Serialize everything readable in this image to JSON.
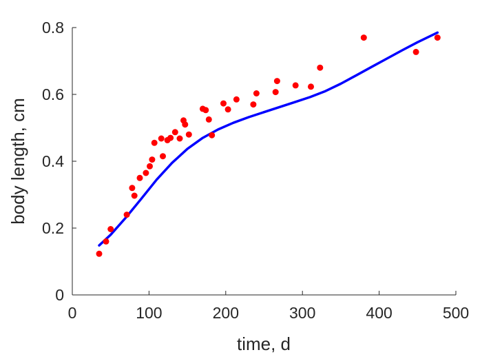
{
  "chart_data": {
    "type": "scatter",
    "title": "",
    "xlabel": "time, d",
    "ylabel": "body length, cm",
    "xlim": [
      0,
      500
    ],
    "ylim": [
      0,
      0.8
    ],
    "xticks": [
      0,
      100,
      200,
      300,
      400,
      500
    ],
    "yticks": [
      0,
      0.2,
      0.4,
      0.6,
      0.8
    ],
    "xtick_labels": [
      "0",
      "100",
      "200",
      "300",
      "400",
      "500"
    ],
    "ytick_labels": [
      "0",
      "0.2",
      "0.4",
      "0.6",
      "0.8"
    ],
    "grid": false,
    "legend": "none",
    "series": [
      {
        "kind": "scatter",
        "color": "#ff0000",
        "x": [
          35,
          44,
          50,
          71,
          78,
          81,
          88,
          96,
          101,
          104,
          107,
          116,
          118,
          124,
          128,
          134,
          140,
          145,
          147,
          152,
          170,
          174,
          178,
          182,
          197,
          203,
          214,
          236,
          240,
          265,
          267,
          291,
          311,
          323,
          380,
          448,
          476
        ],
        "y": [
          0.123,
          0.16,
          0.197,
          0.24,
          0.32,
          0.297,
          0.35,
          0.365,
          0.385,
          0.405,
          0.455,
          0.468,
          0.415,
          0.463,
          0.47,
          0.487,
          0.468,
          0.522,
          0.51,
          0.48,
          0.557,
          0.553,
          0.525,
          0.478,
          0.573,
          0.555,
          0.585,
          0.57,
          0.603,
          0.607,
          0.64,
          0.627,
          0.623,
          0.68,
          0.77,
          0.727,
          0.77
        ]
      },
      {
        "kind": "line",
        "color": "#0000ff",
        "x": [
          35,
          50,
          70,
          90,
          110,
          130,
          150,
          170,
          190,
          210,
          230,
          250,
          270,
          290,
          310,
          330,
          350,
          370,
          390,
          410,
          430,
          450,
          476
        ],
        "y": [
          0.148,
          0.18,
          0.232,
          0.288,
          0.345,
          0.395,
          0.437,
          0.47,
          0.495,
          0.515,
          0.532,
          0.547,
          0.562,
          0.577,
          0.592,
          0.61,
          0.632,
          0.657,
          0.682,
          0.707,
          0.732,
          0.756,
          0.785
        ]
      }
    ]
  }
}
